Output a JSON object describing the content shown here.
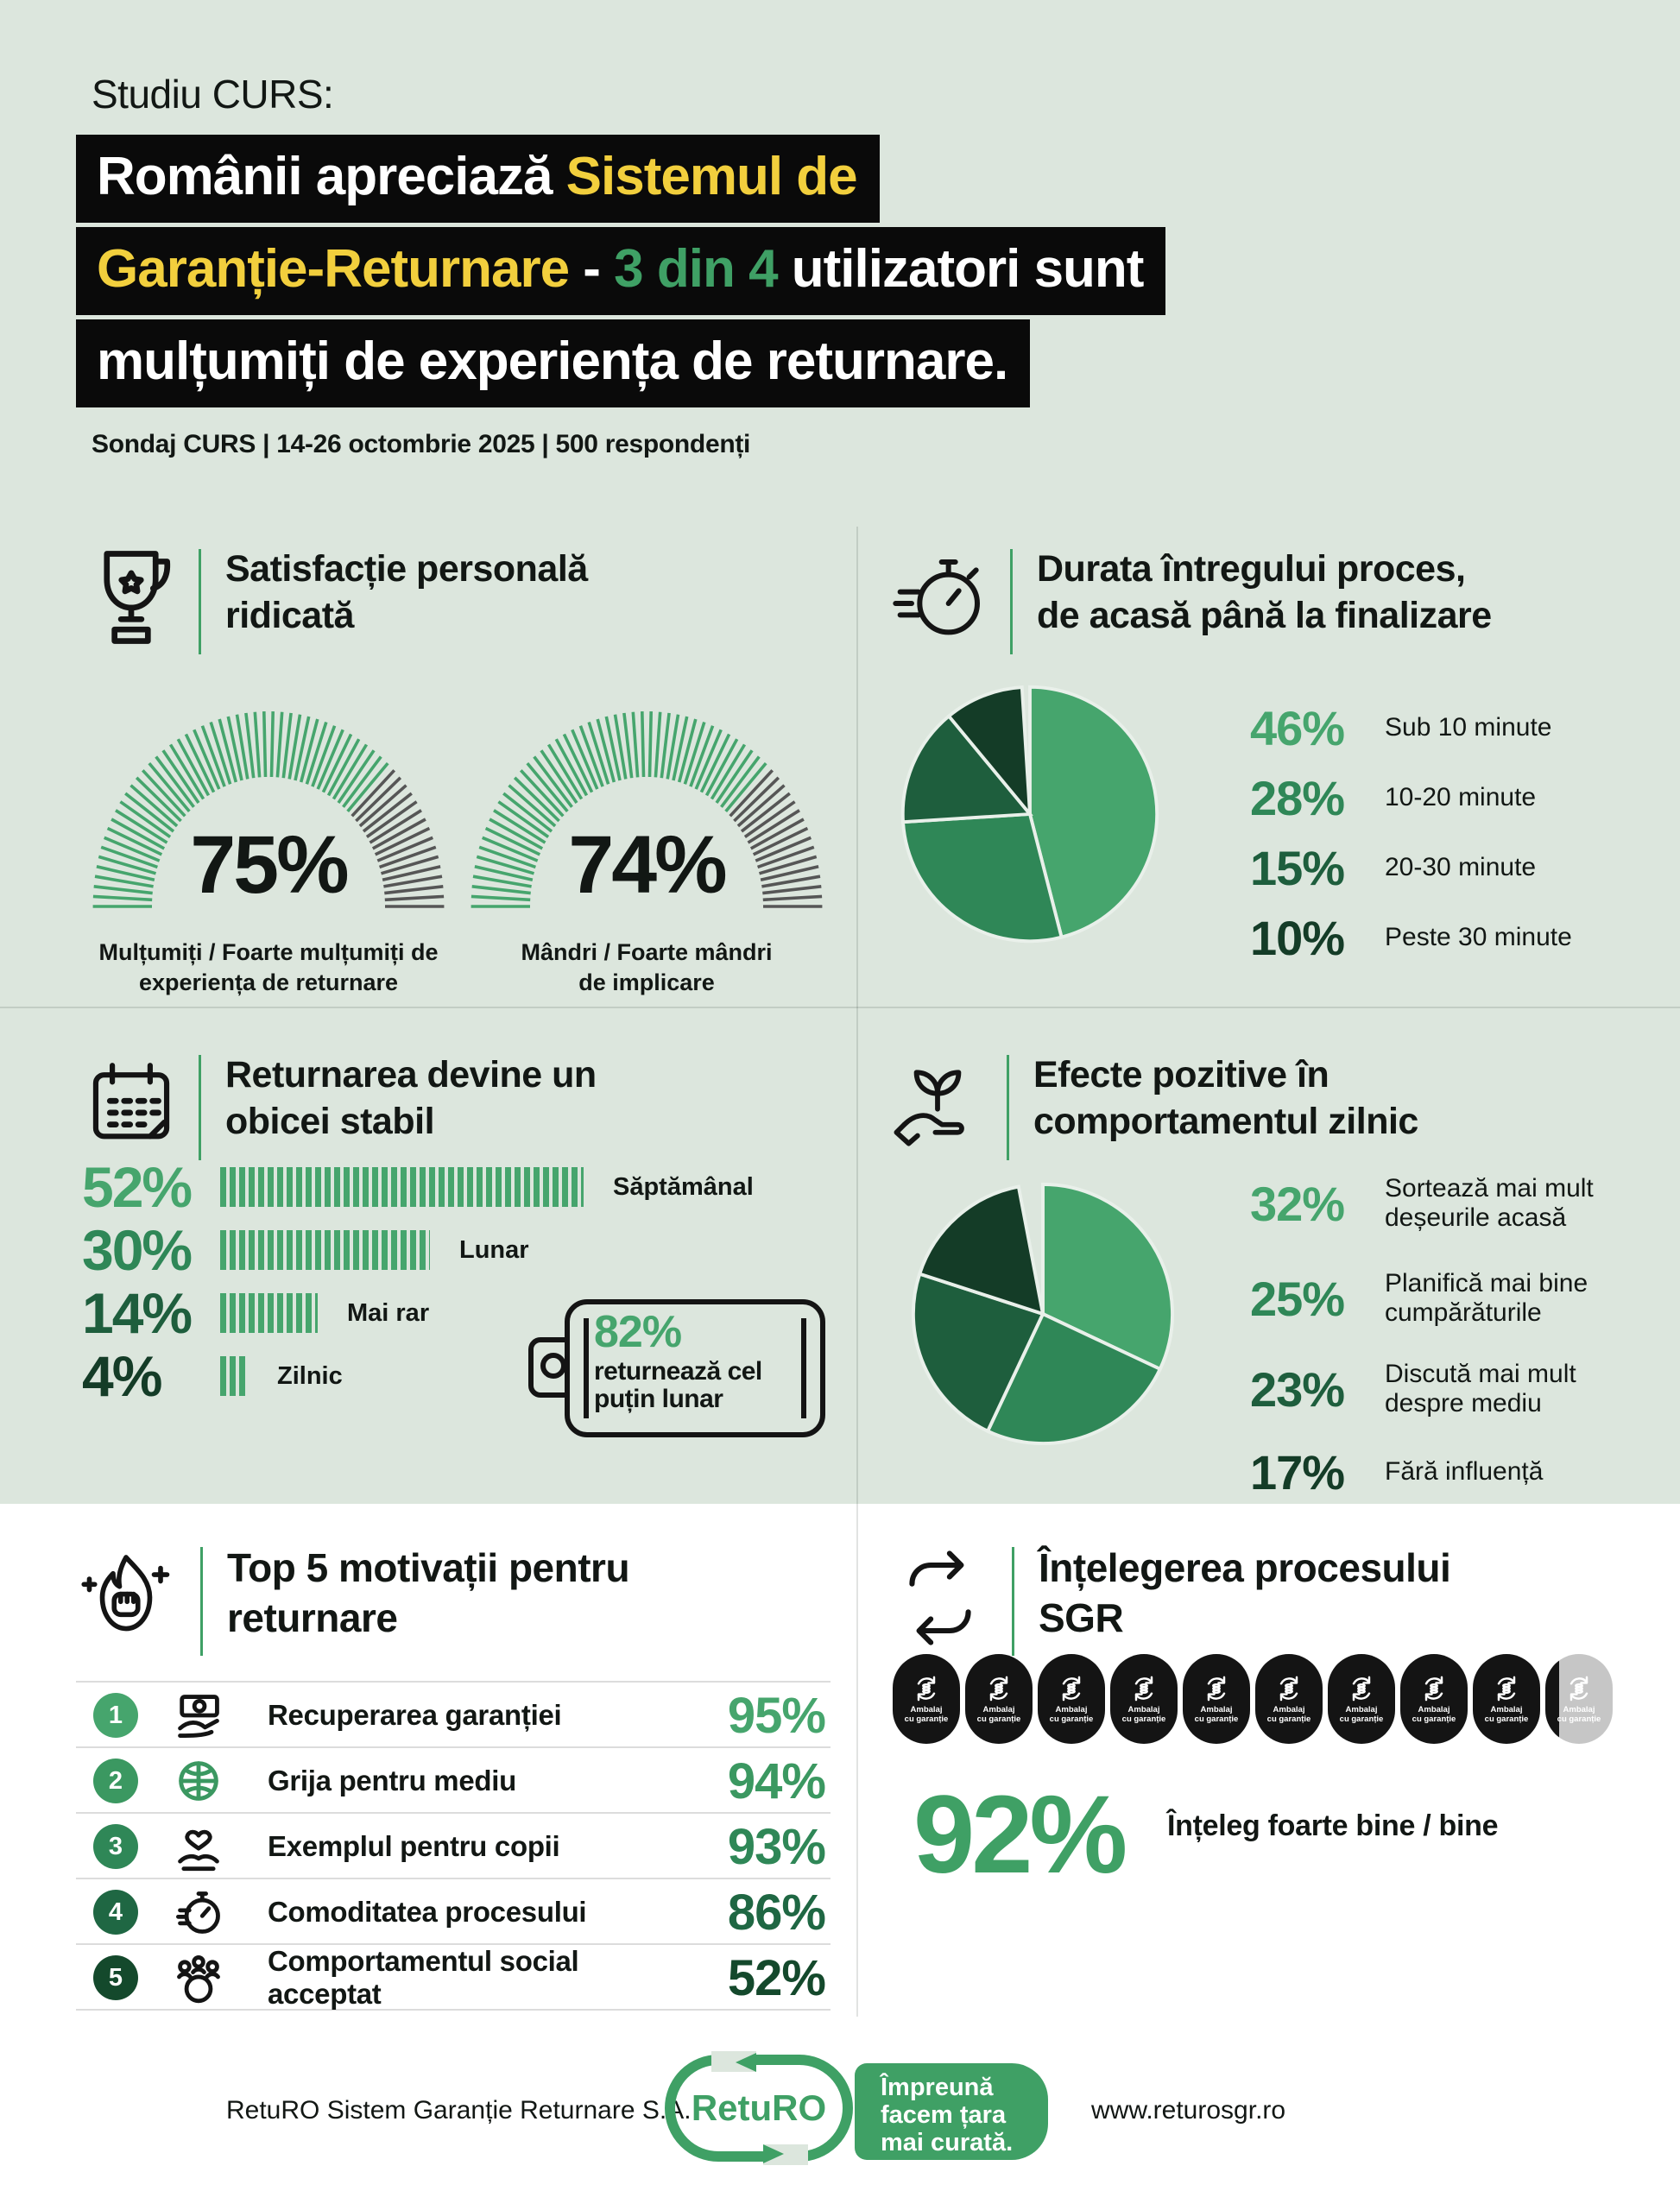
{
  "colors": {
    "bg": "#dce6dd",
    "box_black": "#0a0a0a",
    "white": "#ffffff",
    "yellow": "#f2cf3d",
    "accent": "#3fa065",
    "green1": "#46a56d",
    "green2": "#2f8757",
    "green3": "#1e5e3d",
    "green4": "#143c27",
    "green15": "#3b9861",
    "gauge_gray": "#565656",
    "divider": "#dcdcdc",
    "badge_black": "#141414",
    "badge_gray": "#c6c6c6"
  },
  "header": {
    "kicker": "Studiu CURS:",
    "title_lines": [
      [
        {
          "t": "Românii apreciază ",
          "c": "white"
        },
        {
          "t": "Sistemul de",
          "c": "yellow"
        }
      ],
      [
        {
          "t": "Garanție-Returnare",
          "c": "yellow"
        },
        {
          "t": " - ",
          "c": "white"
        },
        {
          "t": "3 din 4",
          "c": "accent"
        },
        {
          "t": " utilizatori sunt",
          "c": "white"
        }
      ],
      [
        {
          "t": "mulțumiți de experiența de returnare.",
          "c": "white"
        }
      ]
    ],
    "subtitle": "Sondaj CURS | 14-26 octombrie 2025 | 500 respondenți"
  },
  "sections": {
    "satisfaction": {
      "title": "Satisfacție personală\nridicată"
    },
    "duration": {
      "title": "Durata întregului proces,\nde acasă până la finalizare"
    },
    "habit": {
      "title": "Returnarea devine un\nobicei stabil",
      "badge_value": "82%",
      "badge_text": "returnează cel\npuțin lunar"
    },
    "effects": {
      "title": "Efecte pozitive în\ncomportamentul zilnic",
      "legend": [
        "Sortează mai mult\ndeșeurile acasă",
        "Planifică mai bine\ncumpărăturile",
        "Discută mai mult\ndespre mediu",
        "Fără influență"
      ]
    },
    "top5": {
      "title": "Top 5 motivații pentru\nreturnare",
      "items": [
        {
          "rank": "1",
          "label": "Recuperarea garanției",
          "value": "95%",
          "icon": "cash-hand-icon",
          "color": "#46a56d"
        },
        {
          "rank": "2",
          "label": "Grija pentru mediu",
          "value": "94%",
          "icon": "globe-icon",
          "color": "#3b9861"
        },
        {
          "rank": "3",
          "label": "Exemplul pentru copii",
          "value": "93%",
          "icon": "hands-hearts-icon",
          "color": "#2f8757"
        },
        {
          "rank": "4",
          "label": "Comoditatea procesului",
          "value": "86%",
          "icon": "timer-icon",
          "color": "#1f6743"
        },
        {
          "rank": "5",
          "label": "Comportamentul social acceptat",
          "value": "52%",
          "icon": "people-globe-icon",
          "color": "#14492c"
        }
      ]
    },
    "sgr": {
      "title": "Înțelegerea procesului\nSGR",
      "badge_lines": [
        "Ambalaj",
        "cu garanție"
      ],
      "badges_total": 10,
      "big_value": "92%",
      "big_label": "Înțeleg foarte bine / bine"
    }
  },
  "chart_data": [
    {
      "id": "satisfaction-gauges",
      "type": "gauge",
      "max": 100,
      "series": [
        {
          "name": "Mulțumiți / Foarte mulțumiți de\nexperiența de returnare",
          "value": 75
        },
        {
          "name": "Mândri / Foarte mândri\nde implicare",
          "value": 74
        }
      ]
    },
    {
      "id": "duration-pie",
      "type": "pie",
      "title": "Durata întregului proces, de acasă până la finalizare",
      "categories": [
        "Sub 10 minute",
        "10-20 minute",
        "20-30 minute",
        "Peste 30 minute"
      ],
      "values": [
        46,
        28,
        15,
        10
      ],
      "colors": [
        "#46a56d",
        "#2f8757",
        "#1e5e3d",
        "#143c27"
      ],
      "start_angle": 0,
      "direction": "clockwise",
      "legend_position": "right"
    },
    {
      "id": "habit-bars",
      "type": "bar",
      "title": "Returnarea devine un obicei stabil",
      "categories": [
        "Săptămânal",
        "Lunar",
        "Mai rar",
        "Zilnic"
      ],
      "values": [
        52,
        30,
        14,
        4
      ],
      "value_colors": [
        "#46a56d",
        "#2f8757",
        "#1e5e3d",
        "#143c27"
      ],
      "bar_color": "#46a56d",
      "xlim": [
        0,
        100
      ],
      "annotation": "82% returnează cel puțin lunar"
    },
    {
      "id": "effects-pie",
      "type": "pie",
      "title": "Efecte pozitive în comportamentul zilnic",
      "categories": [
        "Sortează mai mult deșeurile acasă",
        "Planifică mai bine cumpărăturile",
        "Discută mai mult despre mediu",
        "Fără influență"
      ],
      "values": [
        32,
        25,
        23,
        17
      ],
      "colors": [
        "#46a56d",
        "#2f8757",
        "#1e5e3d",
        "#143c27"
      ],
      "start_angle": 0,
      "direction": "clockwise",
      "legend_position": "right"
    },
    {
      "id": "top5-values",
      "type": "bar",
      "title": "Top 5 motivații pentru returnare",
      "categories": [
        "Recuperarea garanției",
        "Grija pentru mediu",
        "Exemplul pentru copii",
        "Comoditatea procesului",
        "Comportamentul social acceptat"
      ],
      "values": [
        95,
        94,
        93,
        86,
        52
      ]
    },
    {
      "id": "sgr-pictogram",
      "type": "pictogram",
      "value": 92,
      "units_total": 10,
      "unit_label": "Ambalaj cu garanție",
      "label": "Înțeleg foarte bine / bine"
    }
  ],
  "footer": {
    "company": "RetuRO Sistem Garanție Returnare S.A.",
    "logo_text": "RetuRO",
    "tagline": "Împreună\nfacem țara\nmai curată.",
    "url": "www.returosgr.ro"
  }
}
